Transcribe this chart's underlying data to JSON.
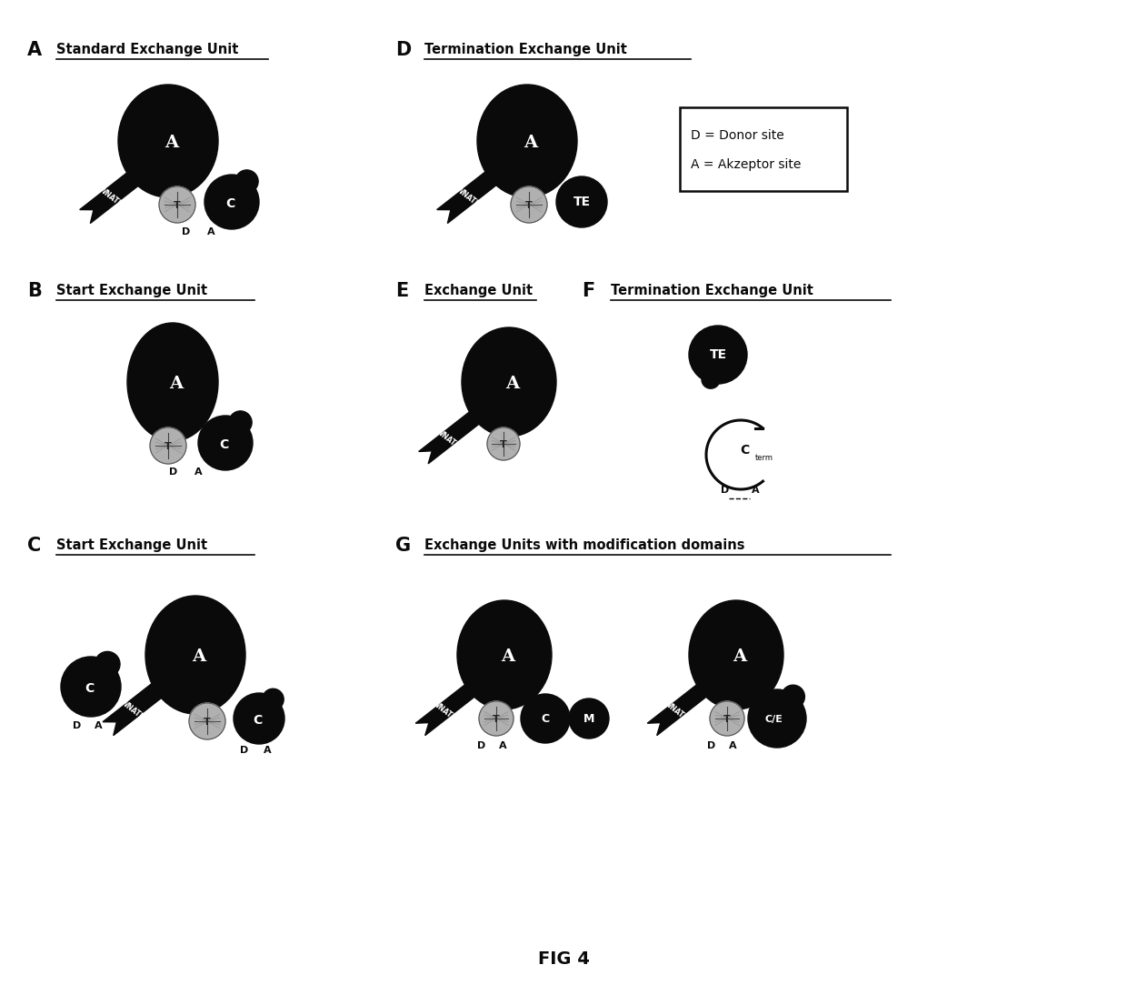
{
  "bg_color": "#ffffff",
  "black": "#0a0a0a",
  "gray": "#b0b0b0",
  "white": "#ffffff",
  "fig_label": "FIG 4",
  "panels": {
    "A": {
      "letter": "A",
      "title": "Standard Exchange Unit"
    },
    "B": {
      "letter": "B",
      "title": "Start Exchange Unit"
    },
    "C": {
      "letter": "C",
      "title": "Start Exchange Unit"
    },
    "D": {
      "letter": "D",
      "title": "Termination Exchange Unit"
    },
    "E": {
      "letter": "E",
      "title": "Exchange Unit"
    },
    "F": {
      "letter": "F",
      "title": "Termination Exchange Unit"
    },
    "G": {
      "letter": "G",
      "title": "Exchange Units with modification domains"
    }
  },
  "legend": {
    "line1": "D = Donor site",
    "line2": "A = Akzeptor site"
  }
}
